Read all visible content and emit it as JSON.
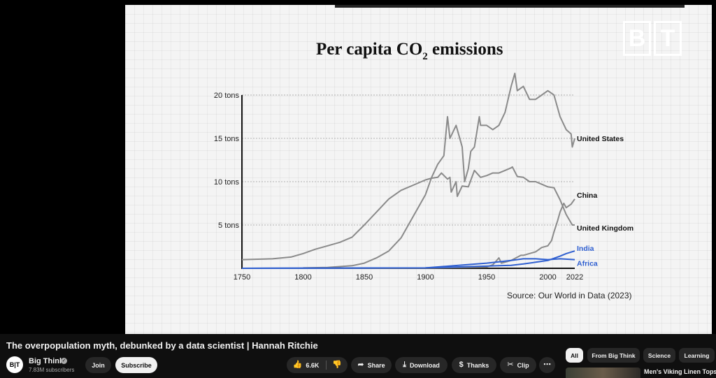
{
  "video": {
    "title": "The overpopulation myth, debunked by a data scientist | Hannah Ritchie",
    "channel_name": "Big Think",
    "channel_avatar_text": "B|T",
    "subscribers": "7.83M subscribers",
    "logo_letters": [
      "B",
      "T"
    ]
  },
  "actions": {
    "join": "Join",
    "subscribe": "Subscribe",
    "likes": "6.6K",
    "share": "Share",
    "download": "Download",
    "thanks": "Thanks",
    "clip": "Clip",
    "more": "⋯"
  },
  "chips": [
    "All",
    "From Big Think",
    "Science",
    "Learning"
  ],
  "recommended": {
    "title": "Men's Viking Linen Tops fo"
  },
  "icons": {
    "like": "thumbs-up-icon",
    "dislike": "thumbs-down-icon",
    "share": "share-arrow-icon",
    "download": "download-icon",
    "thanks": "thanks-dollar-icon",
    "clip": "scissors-icon",
    "more": "more-horizontal-icon",
    "verified": "verified-check-icon"
  },
  "colors": {
    "accent_blue": "#2f5fd0",
    "line_gray": "#8a8a8a",
    "chip_active_bg": "#f1f1f1"
  },
  "chart_data": {
    "type": "line",
    "title": "Per capita CO",
    "title_subscript": "2",
    "title_suffix": " emissions",
    "source": "Source: Our World in Data (2023)",
    "xlim": [
      1750,
      2022
    ],
    "ylim": [
      0,
      20
    ],
    "x_ticks": [
      1750,
      1800,
      1850,
      1900,
      1950,
      2000,
      2022
    ],
    "y_ticks": [
      {
        "value": 5,
        "label": "5 tons"
      },
      {
        "value": 10,
        "label": "10 tons"
      },
      {
        "value": 15,
        "label": "15 tons"
      },
      {
        "value": 20,
        "label": "20 tons"
      }
    ],
    "grid": "dashed horizontal",
    "series": [
      {
        "name": "United States",
        "color": "#8a8a8a",
        "x": [
          1800,
          1820,
          1840,
          1850,
          1860,
          1870,
          1880,
          1890,
          1900,
          1905,
          1910,
          1915,
          1918,
          1920,
          1925,
          1930,
          1932,
          1935,
          1937,
          1940,
          1944,
          1945,
          1950,
          1955,
          1960,
          1965,
          1970,
          1973,
          1975,
          1980,
          1985,
          1990,
          1995,
          2000,
          2005,
          2010,
          2015,
          2019,
          2020,
          2022
        ],
        "y": [
          0.05,
          0.1,
          0.3,
          0.6,
          1.2,
          2.0,
          3.5,
          6.0,
          8.5,
          10.5,
          12.0,
          13.0,
          17.5,
          15.0,
          16.5,
          14.0,
          10.0,
          11.5,
          13.5,
          14.0,
          17.5,
          16.5,
          16.5,
          16.0,
          16.5,
          18.0,
          21.0,
          22.5,
          20.5,
          21.0,
          19.5,
          19.5,
          20.0,
          20.5,
          20.0,
          17.5,
          16.0,
          15.5,
          14.0,
          15.0
        ]
      },
      {
        "name": "China",
        "color": "#8a8a8a",
        "x": [
          1750,
          1900,
          1950,
          1955,
          1960,
          1962,
          1970,
          1978,
          1980,
          1990,
          1995,
          2000,
          2003,
          2005,
          2008,
          2010,
          2013,
          2015,
          2019,
          2022
        ],
        "y": [
          0.0,
          0.02,
          0.15,
          0.4,
          1.2,
          0.6,
          0.9,
          1.5,
          1.5,
          1.9,
          2.4,
          2.6,
          3.2,
          4.2,
          5.5,
          6.5,
          7.5,
          7.0,
          7.4,
          8.0
        ]
      },
      {
        "name": "United Kingdom",
        "color": "#8a8a8a",
        "x": [
          1750,
          1775,
          1790,
          1800,
          1810,
          1820,
          1830,
          1840,
          1850,
          1860,
          1870,
          1880,
          1890,
          1900,
          1905,
          1910,
          1913,
          1918,
          1920,
          1921,
          1925,
          1926,
          1930,
          1935,
          1940,
          1945,
          1950,
          1955,
          1960,
          1965,
          1970,
          1971,
          1975,
          1980,
          1985,
          1990,
          1995,
          2000,
          2005,
          2010,
          2015,
          2020,
          2022
        ],
        "y": [
          1.0,
          1.1,
          1.3,
          1.7,
          2.2,
          2.6,
          3.0,
          3.6,
          5.0,
          6.5,
          8.0,
          9.0,
          9.6,
          10.2,
          10.4,
          10.5,
          11.0,
          10.3,
          10.5,
          8.8,
          10.0,
          8.3,
          9.5,
          9.4,
          11.3,
          10.5,
          10.7,
          11.0,
          11.0,
          11.3,
          11.6,
          11.7,
          10.6,
          10.5,
          10.0,
          10.0,
          9.7,
          9.4,
          9.3,
          7.9,
          6.2,
          5.0,
          5.0
        ]
      },
      {
        "name": "India",
        "color": "#2f5fd0",
        "x": [
          1750,
          1900,
          1950,
          1960,
          1970,
          1980,
          1990,
          2000,
          2010,
          2015,
          2022
        ],
        "y": [
          0.0,
          0.05,
          0.25,
          0.3,
          0.35,
          0.5,
          0.7,
          0.9,
          1.4,
          1.7,
          2.0
        ]
      },
      {
        "name": "Africa",
        "color": "#2f5fd0",
        "x": [
          1750,
          1900,
          1950,
          1960,
          1970,
          1980,
          1990,
          2000,
          2010,
          2022
        ],
        "y": [
          0.0,
          0.05,
          0.6,
          0.75,
          0.9,
          1.1,
          1.1,
          1.0,
          1.1,
          1.0
        ]
      }
    ]
  }
}
